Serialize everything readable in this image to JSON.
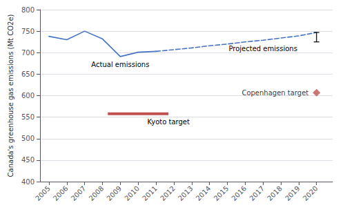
{
  "chart_data": {
    "type": "line",
    "ylabel": "Canada's greenhouse gas emissions (Mt CO2e)",
    "xlim": [
      2004.5,
      2020.9
    ],
    "xticks": [
      2005,
      2006,
      2007,
      2008,
      2009,
      2010,
      2011,
      2012,
      2013,
      2014,
      2015,
      2016,
      2017,
      2018,
      2019,
      2020
    ],
    "ylim": [
      400,
      800
    ],
    "yticks": [
      400,
      450,
      500,
      550,
      600,
      650,
      700,
      750,
      800
    ],
    "grid": true,
    "series": [
      {
        "name": "Actual emissions",
        "type": "line",
        "color": "#4472C4",
        "line_style": "solid",
        "x": [
          2005,
          2006,
          2007,
          2008,
          2009,
          2010,
          2011
        ],
        "values": [
          738,
          730,
          750,
          732,
          691,
          701,
          703
        ]
      },
      {
        "name": "Projected emissions",
        "type": "line",
        "color": "#4472C4",
        "line_style": "dashed",
        "x": [
          2011,
          2012,
          2013,
          2014,
          2015,
          2016,
          2017,
          2018,
          2019,
          2020
        ],
        "values": [
          703,
          707,
          711,
          716,
          720,
          725,
          729,
          734,
          739,
          747
        ]
      },
      {
        "name": "Kyoto target",
        "type": "line",
        "color": "#C0504D",
        "line_style": "solid",
        "x": [
          2008.3,
          2011.7
        ],
        "values": [
          558,
          558
        ]
      },
      {
        "name": "Copenhagen target",
        "type": "scatter",
        "color": "#C0504D",
        "marker": "diamond",
        "x": [
          2020
        ],
        "values": [
          607
        ]
      }
    ],
    "error_bars": [
      {
        "x": 2020,
        "y": 747,
        "minus": 22,
        "plus": 0
      }
    ]
  }
}
